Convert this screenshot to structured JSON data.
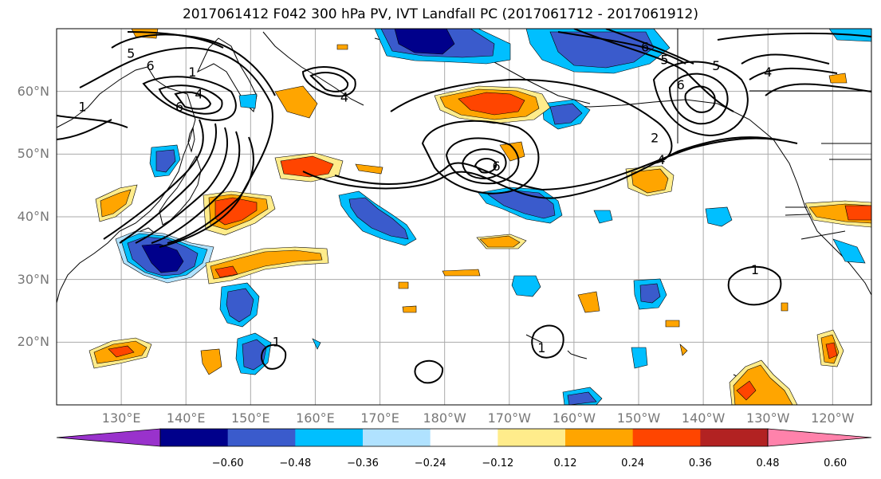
{
  "title": "2017061412 F042 300 hPa PV, IVT Landfall PC (2017061712 - 2017061912)",
  "map": {
    "projection": "cylindrical",
    "lon_range": [
      120,
      246
    ],
    "lat_range": [
      10,
      70
    ],
    "lat_ticks": [
      {
        "value": 20,
        "label": "20°N"
      },
      {
        "value": 30,
        "label": "30°N"
      },
      {
        "value": 40,
        "label": "40°N"
      },
      {
        "value": 50,
        "label": "50°N"
      },
      {
        "value": 60,
        "label": "60°N"
      }
    ],
    "lon_ticks": [
      {
        "value": 130,
        "label": "130°E"
      },
      {
        "value": 140,
        "label": "140°E"
      },
      {
        "value": 150,
        "label": "150°E"
      },
      {
        "value": 160,
        "label": "160°E"
      },
      {
        "value": 170,
        "label": "170°E"
      },
      {
        "value": 180,
        "label": "180°W"
      },
      {
        "value": 190,
        "label": "170°W"
      },
      {
        "value": 200,
        "label": "160°W"
      },
      {
        "value": 210,
        "label": "150°W"
      },
      {
        "value": 220,
        "label": "140°W"
      },
      {
        "value": 230,
        "label": "130°W"
      },
      {
        "value": 240,
        "label": "120°W"
      }
    ],
    "grid": true,
    "fill_field": "IVT Landfall PC",
    "contour_field": "300 hPa PV"
  },
  "colorbar": {
    "colors": [
      "#9932cc",
      "#00008b",
      "#3a5bcc",
      "#00bfff",
      "#b0e2ff",
      "#ffffff",
      "#ffec8b",
      "#ffa500",
      "#ff4500",
      "#b22222",
      "#ff82ab"
    ],
    "tick_labels": [
      "−0.60",
      "−0.48",
      "−0.36",
      "−0.24",
      "−0.12",
      "0.12",
      "0.24",
      "0.36",
      "0.48",
      "0.60"
    ],
    "extend": "both"
  },
  "contour_labels": [
    {
      "text": "1",
      "lon": 124,
      "lat": 57.5
    },
    {
      "text": "6",
      "lon": 134.5,
      "lat": 64
    },
    {
      "text": "5",
      "lon": 131.5,
      "lat": 66
    },
    {
      "text": "1",
      "lon": 141,
      "lat": 63
    },
    {
      "text": "4",
      "lon": 142,
      "lat": 59.5
    },
    {
      "text": "6",
      "lon": 139,
      "lat": 57.5
    },
    {
      "text": "4",
      "lon": 164.5,
      "lat": 59
    },
    {
      "text": "6",
      "lon": 188,
      "lat": 48
    },
    {
      "text": "2",
      "lon": 212.5,
      "lat": 52.5
    },
    {
      "text": "4",
      "lon": 213.5,
      "lat": 49
    },
    {
      "text": "6",
      "lon": 211,
      "lat": 67
    },
    {
      "text": "5",
      "lon": 214,
      "lat": 65
    },
    {
      "text": "5",
      "lon": 222,
      "lat": 64
    },
    {
      "text": "6",
      "lon": 216.5,
      "lat": 61
    },
    {
      "text": "4",
      "lon": 230,
      "lat": 63
    },
    {
      "text": "1",
      "lon": 228,
      "lat": 31.5
    },
    {
      "text": "1",
      "lon": 195,
      "lat": 19
    },
    {
      "text": "1",
      "lon": 154,
      "lat": 20
    }
  ]
}
